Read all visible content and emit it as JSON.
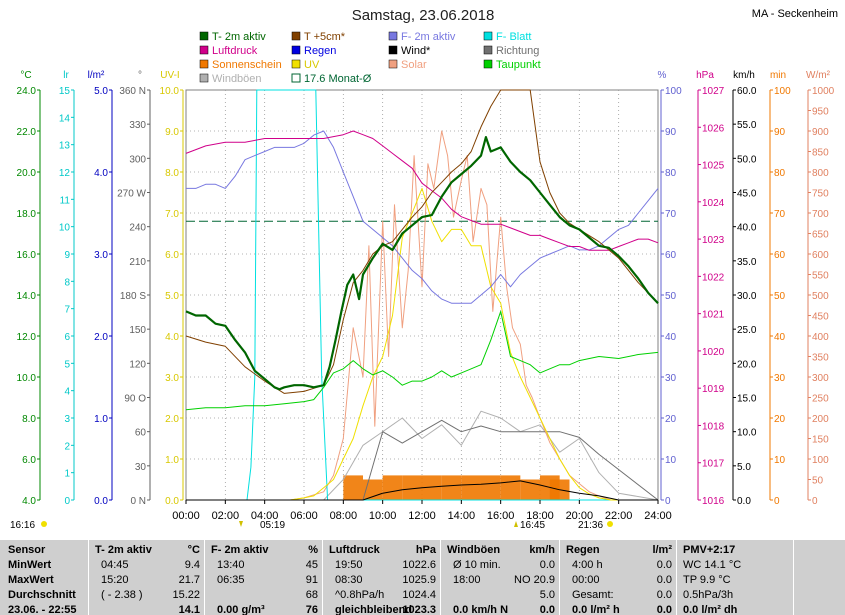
{
  "header": {
    "title": "Samstag, 23.06.2018",
    "station": "MA - Seckenheim"
  },
  "legend": [
    {
      "label": "T- 2m aktiv",
      "color": "#006600",
      "style": "box"
    },
    {
      "label": "T +5cm*",
      "color": "#804000",
      "style": "box"
    },
    {
      "label": "F- 2m aktiv",
      "color": "#7878e0",
      "style": "box"
    },
    {
      "label": "F- Blatt",
      "color": "#00e0e0",
      "style": "box"
    },
    {
      "label": "Luftdruck",
      "color": "#d0008a",
      "style": "box"
    },
    {
      "label": "Regen",
      "color": "#0000e0",
      "style": "box"
    },
    {
      "label": "Wind*",
      "color": "#000000",
      "style": "box"
    },
    {
      "label": "Richtung",
      "color": "#707070",
      "style": "box"
    },
    {
      "label": "Sonnenschein",
      "color": "#f07800",
      "style": "box"
    },
    {
      "label": "UV",
      "color": "#f0e000",
      "style": "box"
    },
    {
      "label": "Solar",
      "color": "#f0a080",
      "style": "box"
    },
    {
      "label": "Taupunkt",
      "color": "#00d000",
      "style": "box"
    },
    {
      "label": "Windböen",
      "color": "#b0b0b0",
      "style": "box"
    },
    {
      "label": "17.6 Monat-Ø",
      "color": "#006633",
      "style": "outline"
    }
  ],
  "axes": {
    "left_units": [
      "°C",
      "lr",
      "l/m²",
      "°",
      "UV-I"
    ],
    "right_units": [
      "%",
      "hPa",
      "km/h",
      "min",
      "W/m²"
    ],
    "temp_ticks": [
      "24.0",
      "22.0",
      "20.0",
      "18.0",
      "16.0",
      "14.0",
      "12.0",
      "10.0",
      "8.0",
      "6.0",
      "4.0"
    ],
    "lr_ticks": [
      "15",
      "14",
      "13",
      "12",
      "11",
      "10",
      "9",
      "8",
      "7",
      "6",
      "5",
      "4",
      "3",
      "2",
      "1",
      "0"
    ],
    "rain_ticks": [
      "5.0",
      "4.0",
      "3.0",
      "2.0",
      "1.0",
      "0.0"
    ],
    "dir_ticks": [
      "360 N",
      "330",
      "300",
      "270 W",
      "240",
      "210",
      "180 S",
      "150",
      "120",
      "90 O",
      "60",
      "30",
      "0 N"
    ],
    "uv_ticks": [
      "10.0",
      "9.0",
      "8.0",
      "7.0",
      "6.0",
      "5.0",
      "4.0",
      "3.0",
      "2.0",
      "1.0",
      "0.0"
    ],
    "hum_ticks": [
      "100",
      "90",
      "80",
      "70",
      "60",
      "50",
      "40",
      "30",
      "20",
      "10",
      "0"
    ],
    "press_ticks": [
      "1027",
      "1026",
      "1025",
      "1024",
      "1023",
      "1022",
      "1021",
      "1020",
      "1019",
      "1018",
      "1017",
      "1016"
    ],
    "wind_ticks": [
      "60.0",
      "55.0",
      "50.0",
      "45.0",
      "40.0",
      "35.0",
      "30.0",
      "25.0",
      "20.0",
      "15.0",
      "10.0",
      "5.0",
      "0.0"
    ],
    "sun_ticks": [
      "100",
      "90",
      "80",
      "70",
      "60",
      "50",
      "40",
      "30",
      "20",
      "10",
      "0"
    ],
    "solar_ticks": [
      "1000",
      "950",
      "900",
      "850",
      "800",
      "750",
      "700",
      "650",
      "600",
      "550",
      "500",
      "450",
      "400",
      "350",
      "300",
      "250",
      "200",
      "150",
      "100",
      "50",
      "0"
    ],
    "time_ticks": [
      "00:00",
      "02:00",
      "04:00",
      "06:00",
      "08:00",
      "10:00",
      "12:00",
      "14:00",
      "16:00",
      "18:00",
      "20:00",
      "22:00",
      "24:00"
    ]
  },
  "events": {
    "left_time": "16:16",
    "sunrise": "05:19",
    "max_time": "16:45",
    "sunset": "21:36"
  },
  "chart_data": {
    "type": "line",
    "title": "Samstag, 23.06.2018",
    "x_unit": "hour",
    "xlim": [
      0,
      24
    ],
    "month_avg_temp": 17.6,
    "series": [
      {
        "name": "T- 2m aktiv",
        "axis": "°C",
        "color": "#006600",
        "x": [
          0,
          0.5,
          1,
          1.5,
          2,
          2.5,
          3,
          3.5,
          4,
          4.5,
          4.75,
          5,
          5.5,
          6,
          6.5,
          7,
          7.3,
          7.6,
          7.9,
          8.2,
          8.5,
          8.8,
          9,
          9.5,
          10,
          10.5,
          11,
          11.5,
          12,
          12.5,
          13,
          13.5,
          14,
          14.5,
          15,
          15.25,
          15.5,
          16,
          16.5,
          17,
          17.5,
          18,
          18.5,
          19,
          19.5,
          20,
          20.5,
          21,
          21.5,
          22,
          22.5,
          23,
          23.5,
          24
        ],
        "values": [
          13.2,
          13.0,
          13.0,
          12.6,
          12.5,
          11.8,
          11.2,
          10.3,
          9.9,
          9.5,
          9.4,
          9.5,
          9.6,
          9.6,
          9.5,
          9.6,
          10.5,
          11.8,
          13.2,
          14.5,
          15.0,
          13.8,
          15.0,
          15.8,
          16.5,
          16.2,
          17.0,
          17.4,
          17.8,
          17.9,
          18.8,
          19.5,
          19.9,
          20.3,
          20.8,
          21.7,
          21.0,
          21.2,
          20.5,
          20.0,
          19.6,
          19.0,
          18.4,
          17.8,
          17.4,
          17.2,
          16.8,
          16.4,
          16.3,
          15.9,
          15.4,
          14.8,
          14.1,
          13.6
        ]
      },
      {
        "name": "T +5cm*",
        "axis": "°C",
        "color": "#804000",
        "x": [
          0,
          1,
          2,
          3,
          4,
          5,
          6,
          7,
          7.5,
          8,
          8.5,
          9,
          9.5,
          10,
          10.5,
          11,
          11.5,
          12,
          12.5,
          13,
          13.5,
          14,
          14.5,
          15,
          15.5,
          16,
          16.5,
          17,
          17.5,
          18,
          18.5,
          19,
          19.5,
          20,
          21,
          22,
          23,
          24
        ],
        "values": [
          12.0,
          11.7,
          11.5,
          10.5,
          9.8,
          9.2,
          9.3,
          9.6,
          10.6,
          12.8,
          14.6,
          15.2,
          16.0,
          16.4,
          16.6,
          17.2,
          17.8,
          18.3,
          19.0,
          19.5,
          20.0,
          20.4,
          21.0,
          22.2,
          23.2,
          24.0,
          25.0,
          26.0,
          24.5,
          20.5,
          19.0,
          18.0,
          17.5,
          17.2,
          16.6,
          15.8,
          14.6,
          13.6
        ]
      },
      {
        "name": "F- 2m aktiv",
        "axis": "%",
        "color": "#7878e0",
        "x": [
          0,
          0.5,
          1,
          1.5,
          2,
          2.5,
          3,
          3.5,
          4,
          4.5,
          5,
          5.5,
          6,
          6.5,
          7,
          7.5,
          8,
          8.5,
          9,
          9.5,
          10,
          10.5,
          11,
          11.5,
          12,
          12.5,
          13,
          13.5,
          14,
          14.5,
          15,
          15.5,
          16,
          16.5,
          17,
          17.5,
          18,
          18.5,
          19,
          19.5,
          20,
          20.5,
          21,
          21.5,
          22,
          22.5,
          23,
          23.5,
          24
        ],
        "values": [
          76,
          76,
          77,
          77,
          76,
          79,
          83,
          84,
          85,
          86,
          86,
          86,
          87,
          89,
          90,
          86,
          80,
          74,
          68,
          66,
          64,
          62,
          59,
          56,
          54,
          51,
          49,
          48,
          48,
          48,
          50,
          52,
          55,
          52,
          55,
          57,
          59,
          60,
          61,
          62,
          61,
          61,
          62,
          64,
          66,
          67,
          70,
          73,
          76
        ]
      },
      {
        "name": "F- Blatt",
        "axis": "%",
        "color": "#00e0e0",
        "x": [
          0,
          3.1,
          3.3,
          3.5,
          3.6,
          4,
          5,
          6,
          6.6,
          6.9,
          7.2,
          24
        ],
        "values": [
          0,
          0,
          8,
          30,
          100,
          100,
          100,
          100,
          100,
          30,
          0,
          0
        ]
      },
      {
        "name": "Luftdruck",
        "axis": "hPa",
        "color": "#d0008a",
        "x": [
          0,
          1,
          2,
          3,
          4,
          5,
          6,
          7,
          8,
          8.5,
          9,
          9.5,
          10,
          10.5,
          11,
          11.5,
          12,
          12.5,
          13,
          13.5,
          14,
          14.5,
          15,
          15.5,
          16,
          16.5,
          17,
          17.5,
          18,
          18.5,
          19,
          19.5,
          20,
          20.5,
          21,
          21.5,
          22,
          22.5,
          23,
          23.5,
          24
        ],
        "values": [
          1025.3,
          1025.5,
          1025.6,
          1025.6,
          1025.7,
          1025.7,
          1025.7,
          1025.7,
          1025.8,
          1025.9,
          1025.8,
          1025.7,
          1025.5,
          1025.3,
          1025.1,
          1024.9,
          1024.5,
          1024.3,
          1024.1,
          1023.8,
          1023.6,
          1023.5,
          1023.4,
          1023.4,
          1023.4,
          1023.3,
          1023.2,
          1023.1,
          1023.1,
          1023.0,
          1022.9,
          1022.8,
          1022.8,
          1022.7,
          1022.7,
          1022.7,
          1022.8,
          1022.9,
          1023.0,
          1023.0,
          1022.9
        ]
      },
      {
        "name": "Taupunkt",
        "axis": "°C",
        "color": "#00d000",
        "x": [
          0,
          1,
          2,
          3,
          4,
          5,
          6,
          6.5,
          7,
          7.5,
          8,
          8.5,
          9,
          9.5,
          10,
          10.5,
          11,
          11.5,
          12,
          12.5,
          13,
          13.5,
          14,
          14.5,
          15,
          15.5,
          16,
          16.5,
          17,
          17.5,
          18,
          18.5,
          19,
          19.5,
          20,
          21,
          22,
          23,
          24
        ],
        "values": [
          8.4,
          8.5,
          8.5,
          8.6,
          8.6,
          8.7,
          8.8,
          8.9,
          9.5,
          10.2,
          10.4,
          10.8,
          10.4,
          10.1,
          10.3,
          10.0,
          9.6,
          9.8,
          9.8,
          10.0,
          10.3,
          10.0,
          10.2,
          10.4,
          10.6,
          11.8,
          13.2,
          11.0,
          10.8,
          10.6,
          10.2,
          10.4,
          10.6,
          10.6,
          10.8,
          11.0,
          10.9,
          11.1,
          11.2
        ]
      },
      {
        "name": "UV",
        "axis": "UV-I",
        "color": "#f0e000",
        "x": [
          0,
          5.3,
          6,
          6.5,
          7,
          7.5,
          8,
          8.5,
          9,
          9.5,
          10,
          10.5,
          11,
          11.5,
          12,
          12.5,
          13,
          13.5,
          14,
          14.5,
          15,
          15.5,
          16,
          16.5,
          17,
          17.5,
          18,
          18.5,
          19,
          19.5,
          20,
          20.5,
          21,
          21.6,
          24
        ],
        "values": [
          0,
          0,
          0.05,
          0.1,
          0.3,
          0.5,
          1.0,
          1.5,
          2.3,
          3.0,
          3.5,
          4.5,
          6.4,
          7.0,
          7.6,
          6.8,
          6.3,
          6.6,
          6.6,
          6.2,
          6.2,
          5.2,
          4.8,
          3.6,
          3.0,
          2.5,
          2.0,
          1.5,
          1.0,
          0.6,
          0.3,
          0.15,
          0.05,
          0,
          0
        ]
      },
      {
        "name": "Solar",
        "axis": "W/m²",
        "color": "#f0a080",
        "x": [
          0,
          5.3,
          6,
          7,
          7.5,
          8,
          8.5,
          9,
          9.3,
          9.6,
          10,
          10.3,
          10.6,
          11,
          11.3,
          11.6,
          12,
          12.3,
          12.6,
          13,
          13.3,
          13.6,
          14,
          14.3,
          14.6,
          15,
          15.3,
          15.6,
          16,
          16.3,
          16.6,
          17,
          17.3,
          17.6,
          18,
          18.5,
          19,
          19.5,
          20,
          20.5,
          21,
          21.6,
          24
        ],
        "values": [
          0,
          0,
          5,
          20,
          60,
          150,
          420,
          300,
          620,
          180,
          680,
          350,
          720,
          420,
          560,
          840,
          520,
          820,
          760,
          900,
          840,
          690,
          780,
          840,
          630,
          760,
          720,
          460,
          690,
          520,
          420,
          380,
          280,
          250,
          200,
          140,
          100,
          60,
          40,
          20,
          10,
          0,
          0
        ]
      },
      {
        "name": "Windböen",
        "axis": "km/h",
        "color": "#b0b0b0",
        "x": [
          0,
          7,
          8,
          9,
          10,
          11,
          12,
          13,
          14,
          15,
          16,
          17,
          18,
          19,
          20,
          21,
          22,
          24
        ],
        "values": [
          0,
          0,
          3,
          8,
          10,
          12,
          9,
          11,
          8,
          13,
          12,
          10,
          11,
          7,
          9,
          4,
          1,
          0
        ]
      },
      {
        "name": "Wind*",
        "axis": "km/h",
        "color": "#000000",
        "x": [
          0,
          9,
          10,
          11,
          12,
          13,
          14,
          15,
          16,
          17,
          18,
          19,
          20,
          21,
          22,
          24
        ],
        "values": [
          0,
          0,
          1,
          1.5,
          1.8,
          2,
          2.2,
          2.3,
          2.5,
          2.8,
          2.2,
          1.5,
          1,
          0.6,
          0,
          0
        ]
      },
      {
        "name": "Richtung",
        "axis": "°",
        "color": "#707070",
        "x": [
          0,
          9,
          10,
          11,
          12,
          13,
          14,
          15,
          16,
          17,
          18,
          19,
          20,
          21,
          24
        ],
        "values": [
          0,
          0,
          60,
          50,
          60,
          70,
          60,
          65,
          60,
          60,
          60,
          60,
          55,
          40,
          0
        ]
      }
    ],
    "sunshine_minutes": {
      "axis": "min",
      "color": "#f07800",
      "x": [
        8,
        9,
        10,
        11,
        12,
        13,
        14,
        15,
        16,
        17,
        18,
        18.5
      ],
      "values": [
        6,
        5,
        6,
        6,
        6,
        6,
        6,
        6,
        6,
        5,
        6,
        5
      ]
    }
  },
  "table": {
    "row_labels": [
      "Sensor",
      "MinWert",
      "MaxWert",
      "Durchschnitt",
      "23.06. - 22:55"
    ],
    "temp": {
      "title": "T- 2m aktiv",
      "unit": "°C",
      "rows": [
        [
          "04:45",
          "9.4"
        ],
        [
          "15:20",
          "21.7"
        ],
        [
          "( - 2.38 )",
          "15.22"
        ],
        [
          "",
          "14.1"
        ]
      ]
    },
    "hum": {
      "title": "F- 2m aktiv",
      "unit": "%",
      "rows": [
        [
          "13:40",
          "45"
        ],
        [
          "06:35",
          "91"
        ],
        [
          "",
          "68"
        ],
        [
          "0.00 g/m³",
          "76"
        ]
      ]
    },
    "press": {
      "title": "Luftdruck",
      "unit": "hPa",
      "rows": [
        [
          "19:50",
          "1022.6"
        ],
        [
          "08:30",
          "1025.9"
        ],
        [
          "^0.8hPa/h",
          "1024.4"
        ],
        [
          "gleichbleibend",
          "1023.3"
        ]
      ]
    },
    "wind": {
      "title": "Windböen",
      "unit": "km/h",
      "rows": [
        [
          "Ø 10 min.",
          "0.0"
        ],
        [
          "18:00",
          "NO 20.9"
        ],
        [
          "",
          "5.0"
        ],
        [
          "0.0 km/h N",
          "0.0"
        ]
      ]
    },
    "rain": {
      "title": "Regen",
      "unit": "l/m²",
      "rows": [
        [
          "4:00 h",
          "0.0"
        ],
        [
          "00:00",
          "0.0"
        ],
        [
          "Gesamt:",
          "0.0"
        ],
        [
          "0.0 l/m² h",
          "0.0"
        ]
      ]
    },
    "pmv": {
      "title": "PMV+2:17",
      "rows": [
        "WC 14.1 °C",
        "TP 9.9 °C",
        "0.5hPa/3h",
        "0.0 l/m² dh"
      ]
    }
  }
}
